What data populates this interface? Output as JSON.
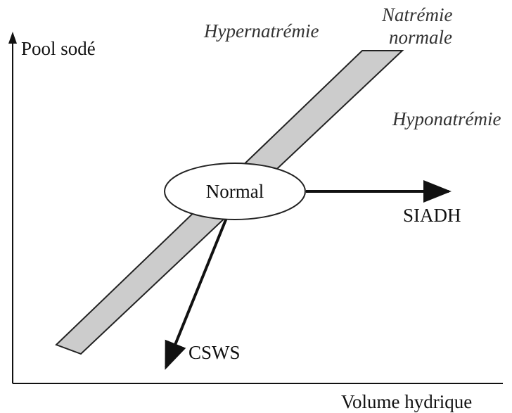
{
  "axes": {
    "y_label": "Pool sodé",
    "x_label": "Volume hydrique"
  },
  "regions": {
    "upper": "Hypernatrémie",
    "band": [
      "Natrémie",
      "normale"
    ],
    "lower": "Hyponatrémie"
  },
  "center": "Normal",
  "arrows": {
    "right": "SIADH",
    "down": "CSWS"
  }
}
